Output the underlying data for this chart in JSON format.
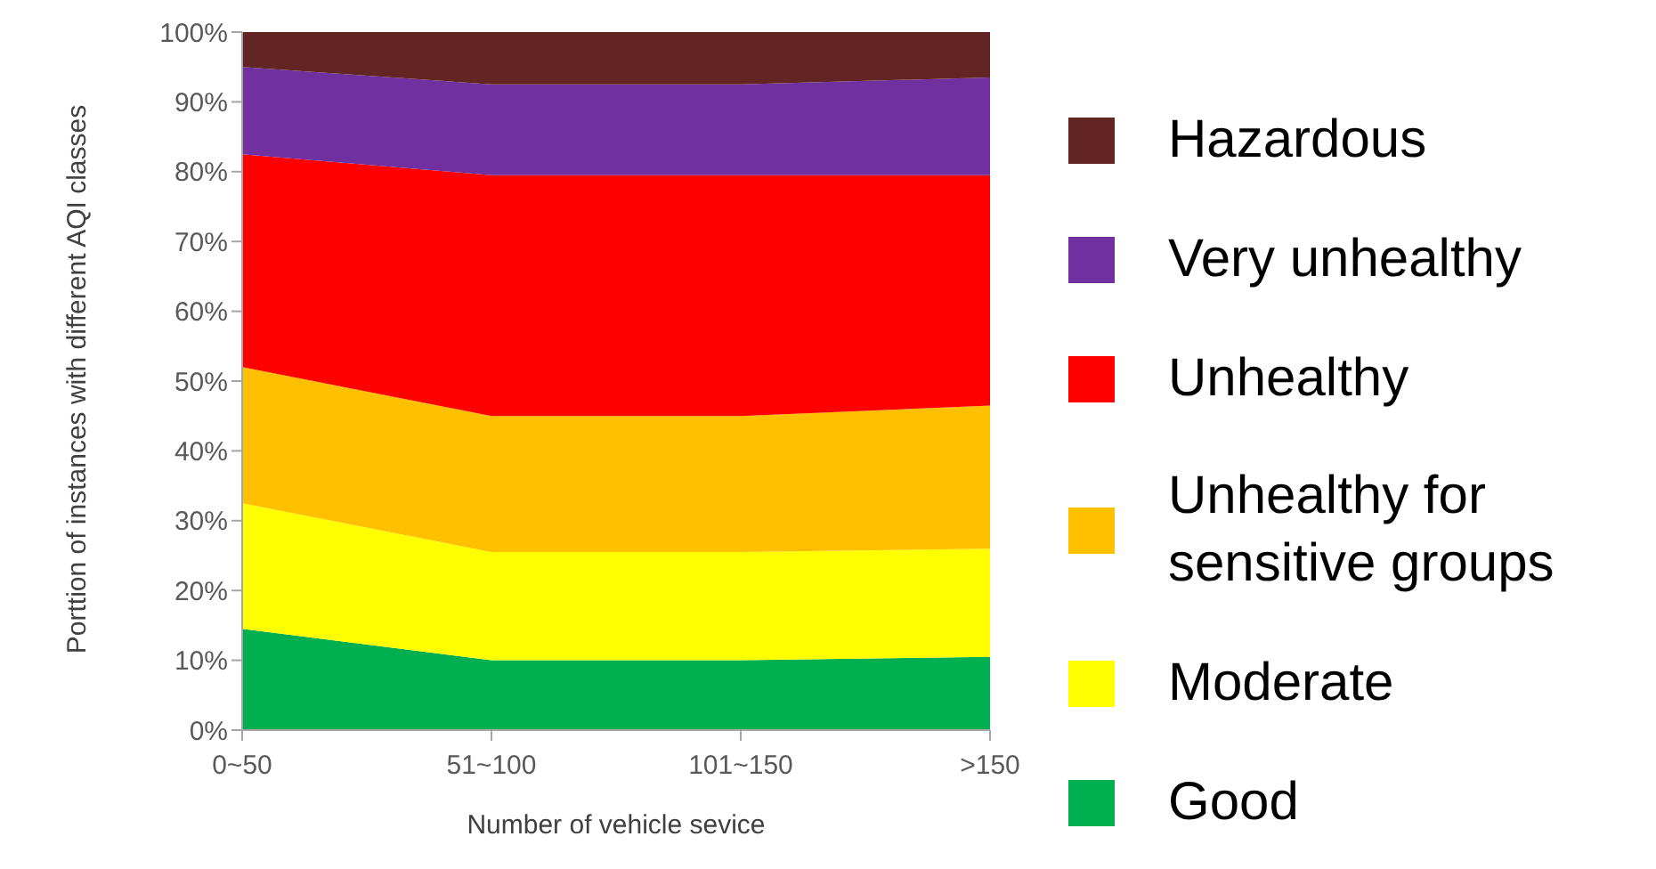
{
  "chart_data": {
    "type": "area",
    "stacked": true,
    "xlabel": "Number of vehicle sevice",
    "ylabel": "Porttion of instances with different AQI classes",
    "categories": [
      "0~50",
      "51~100",
      "101~150",
      ">150"
    ],
    "series": [
      {
        "name": "Good",
        "color": "#00b050",
        "values": [
          14.5,
          10,
          10,
          10.5
        ]
      },
      {
        "name": "Moderate",
        "color": "#ffff00",
        "values": [
          18,
          15.5,
          15.5,
          15.5
        ]
      },
      {
        "name": "Unhealthy for sensitive groups",
        "color": "#ffc000",
        "values": [
          19.5,
          19.5,
          19.5,
          20.5
        ]
      },
      {
        "name": "Unhealthy",
        "color": "#ff0000",
        "values": [
          30.5,
          34.5,
          34.5,
          33
        ]
      },
      {
        "name": "Very unhealthy",
        "color": "#7030a0",
        "values": [
          12.5,
          13,
          13,
          14
        ]
      },
      {
        "name": "Hazardous",
        "color": "#632523",
        "values": [
          5,
          7.5,
          7.5,
          6.5
        ]
      }
    ],
    "ylim": [
      0,
      100
    ],
    "yticks": [
      {
        "value": 0,
        "label": "0%"
      },
      {
        "value": 10,
        "label": "10%"
      },
      {
        "value": 20,
        "label": "20%"
      },
      {
        "value": 30,
        "label": "30%"
      },
      {
        "value": 40,
        "label": "40%"
      },
      {
        "value": 50,
        "label": "50%"
      },
      {
        "value": 60,
        "label": "60%"
      },
      {
        "value": 70,
        "label": "70%"
      },
      {
        "value": 80,
        "label": "80%"
      },
      {
        "value": 90,
        "label": "90%"
      },
      {
        "value": 100,
        "label": "100%"
      }
    ],
    "grid": false,
    "legend": "right"
  }
}
